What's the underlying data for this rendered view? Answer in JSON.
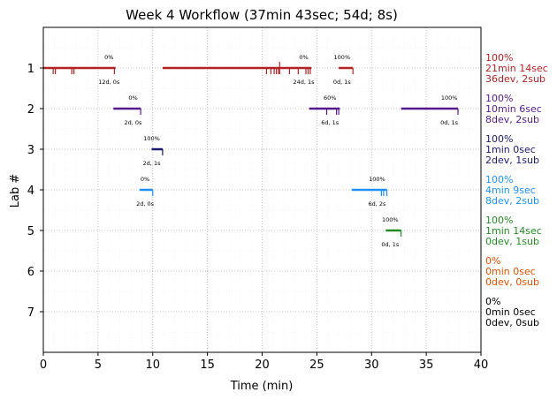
{
  "chart_data": {
    "type": "timeline",
    "title": "Week 4 Workflow (37min 43sec; 54d; 8s)",
    "xlabel": "Time (min)",
    "ylabel": "Lab #",
    "xlim": [
      0,
      40
    ],
    "ylim": [
      0,
      8
    ],
    "xticks": [
      "0",
      "5",
      "10",
      "15",
      "20",
      "25",
      "30",
      "35",
      "40"
    ],
    "yticks": [
      "1",
      "2",
      "3",
      "4",
      "5",
      "6",
      "7"
    ],
    "grid": true,
    "labs": [
      {
        "lab": 1,
        "color": "#b22222",
        "segments": [
          [
            0,
            6.6
          ],
          [
            10.9,
            24.5
          ],
          [
            27.0,
            28.3
          ]
        ],
        "ticks": [
          0.9,
          1.1,
          2.6,
          2.8,
          6.5,
          20.4,
          20.8,
          21.1,
          21.3,
          21.5,
          22.5,
          23.3,
          24.0,
          24.2,
          24.4,
          28.3
        ],
        "tall_ticks": [
          21.6
        ],
        "annotations": [
          {
            "x": 6.0,
            "pct": "0%",
            "detail": "12d, 0s"
          },
          {
            "x": 23.8,
            "pct": "0%",
            "detail": "24d, 1s"
          },
          {
            "x": 27.3,
            "pct": "100%",
            "detail": "0d, 1s"
          }
        ],
        "summary": [
          "100%",
          "21min 14sec",
          "36dev, 2sub"
        ]
      },
      {
        "lab": 2,
        "color": "#551a8b",
        "segments": [
          [
            6.4,
            8.9
          ],
          [
            24.3,
            27.1
          ],
          [
            32.7,
            37.9
          ]
        ],
        "ticks": [
          8.9,
          25.9,
          26.8,
          27.0,
          37.9
        ],
        "tall_ticks": [],
        "annotations": [
          {
            "x": 8.2,
            "pct": "0%",
            "detail": "2d, 0s"
          },
          {
            "x": 26.2,
            "pct": "60%",
            "detail": "6d, 1s"
          },
          {
            "x": 37.1,
            "pct": "100%",
            "detail": "0d, 1s"
          }
        ],
        "summary": [
          "100%",
          "10min 6sec",
          "8dev, 2sub"
        ]
      },
      {
        "lab": 3,
        "color": "#191970",
        "segments": [
          [
            9.9,
            10.9
          ]
        ],
        "ticks": [
          10.9
        ],
        "tall_ticks": [],
        "annotations": [
          {
            "x": 9.9,
            "pct": "100%",
            "detail": "2d, 1s"
          }
        ],
        "summary": [
          "100%",
          "1min 0sec",
          "2dev, 1sub"
        ]
      },
      {
        "lab": 4,
        "color": "#1e90ff",
        "segments": [
          [
            8.8,
            10.0
          ],
          [
            28.2,
            31.4
          ]
        ],
        "ticks": [
          10.0,
          30.9,
          31.1,
          31.4
        ],
        "tall_ticks": [],
        "annotations": [
          {
            "x": 9.3,
            "pct": "0%",
            "detail": "2d, 0s"
          },
          {
            "x": 30.5,
            "pct": "100%",
            "detail": "6d, 2s"
          }
        ],
        "summary": [
          "100%",
          "4min 9sec",
          "8dev, 2sub"
        ]
      },
      {
        "lab": 5,
        "color": "#228b22",
        "segments": [
          [
            31.3,
            32.7
          ]
        ],
        "ticks": [
          32.7
        ],
        "tall_ticks": [],
        "annotations": [
          {
            "x": 31.7,
            "pct": "100%",
            "detail": "0d, 1s"
          }
        ],
        "summary": [
          "100%",
          "1min 14sec",
          "0dev, 1sub"
        ]
      },
      {
        "lab": 6,
        "color": "#e05000",
        "segments": [],
        "ticks": [],
        "tall_ticks": [],
        "annotations": [],
        "summary": [
          "0%",
          "0min 0sec",
          "0dev, 0sub"
        ]
      },
      {
        "lab": 7,
        "color": "#000000",
        "segments": [],
        "ticks": [],
        "tall_ticks": [],
        "annotations": [],
        "summary": [
          "0%",
          "0min 0sec",
          "0dev, 0sub"
        ]
      }
    ]
  }
}
